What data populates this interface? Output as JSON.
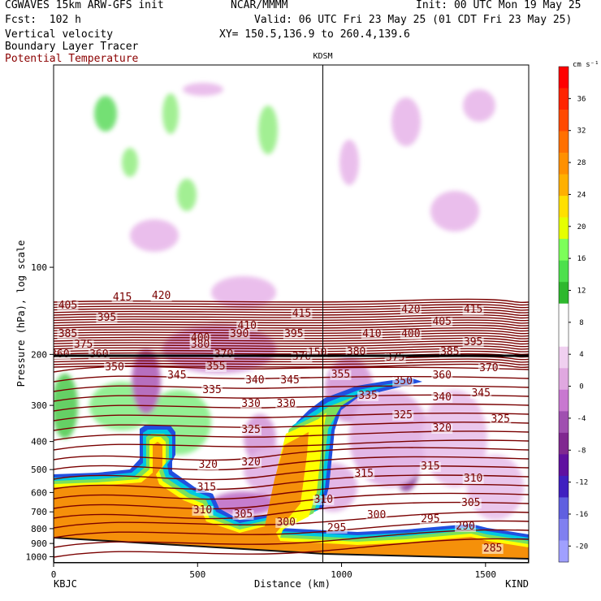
{
  "header": {
    "model": "CGWAVES 15km ARW-GFS init",
    "fcst": "Fcst:  102 h",
    "field1": "Vertical velocity",
    "field2": "Boundary Layer Tracer",
    "field3": "Potential Temperature",
    "org": "NCAR/MMMM",
    "init": "Init: 00 UTC Mon 19 May 25",
    "valid": "Valid: 06 UTC Fri 23 May 25 (01 CDT Fri 23 May 25)",
    "xy": "XY= 150.5,136.9 to 260.4,139.6"
  },
  "colors": {
    "theta": "#7a0000",
    "tracer_orange": "#f5900a",
    "tracer_yellow": "#ffff00",
    "tracer_green": "#7ce05a",
    "tracer_cyan": "#00c8e0",
    "tracer_blue": "#2050e0",
    "w_pos": "#66dd66",
    "w_neg": "#c878d0"
  },
  "chart_data": {
    "type": "heatmap",
    "title": "",
    "xlabel": "Distance (km)",
    "ylabel": "Pressure (hPa), log scale",
    "xlim": [
      0,
      1650
    ],
    "ylim": [
      1050,
      20
    ],
    "x_ticks": [
      0,
      500,
      1000,
      1500
    ],
    "y_ticks": [
      100,
      200,
      300,
      400,
      500,
      600,
      700,
      800,
      900,
      1000
    ],
    "start_station": "KBJC",
    "end_station": "KIND",
    "marker_station": "KDSM",
    "marker_x": 935,
    "colorbar": {
      "unit": "cm s⁻¹",
      "ticks": [
        36,
        32,
        28,
        24,
        20,
        16,
        12,
        8,
        4,
        0,
        -4,
        -8,
        -12,
        -16,
        -20
      ],
      "colors": [
        "#ff0000",
        "#ff2400",
        "#ff4a00",
        "#ff7000",
        "#ff9000",
        "#ffb000",
        "#ffe000",
        "#e6ff00",
        "#7cff5a",
        "#4ce04c",
        "#2eb82e",
        "#ffffff",
        "#ffffff",
        "#f0d0f0",
        "#e0a8e0",
        "#c878d0",
        "#a050b0",
        "#802890",
        "#6010a0",
        "#4020c0",
        "#6060e0",
        "#8080f0",
        "#a0a0ff"
      ]
    },
    "theta_labels": [
      {
        "x": 80,
        "p": 380,
        "v": "405"
      },
      {
        "x": 150,
        "p": 370,
        "v": "415"
      },
      {
        "x": 200,
        "p": 368,
        "v": "420"
      },
      {
        "x": 130,
        "p": 395,
        "v": "395"
      },
      {
        "x": 250,
        "p": 420,
        "v": "400"
      },
      {
        "x": 310,
        "p": 405,
        "v": "410"
      },
      {
        "x": 380,
        "p": 390,
        "v": "415"
      },
      {
        "x": 470,
        "p": 415,
        "v": "410"
      },
      {
        "x": 520,
        "p": 385,
        "v": "420"
      },
      {
        "x": 560,
        "p": 400,
        "v": "405"
      },
      {
        "x": 600,
        "p": 385,
        "v": "415"
      },
      {
        "x": 80,
        "p": 415,
        "v": "385"
      },
      {
        "x": 100,
        "p": 428,
        "v": "375"
      },
      {
        "x": 250,
        "p": 428,
        "v": "380"
      },
      {
        "x": 300,
        "p": 415,
        "v": "390"
      },
      {
        "x": 370,
        "p": 415,
        "v": "395"
      },
      {
        "x": 520,
        "p": 415,
        "v": "400"
      },
      {
        "x": 600,
        "p": 425,
        "v": "395"
      },
      {
        "x": 70,
        "p": 440,
        "v": "360"
      },
      {
        "x": 120,
        "p": 440,
        "v": "360"
      },
      {
        "x": 280,
        "p": 440,
        "v": "370"
      },
      {
        "x": 380,
        "p": 443,
        "v": "370"
      },
      {
        "x": 400,
        "p": 438,
        "v": "150"
      },
      {
        "x": 450,
        "p": 437,
        "v": "380"
      },
      {
        "x": 500,
        "p": 444,
        "v": "375"
      },
      {
        "x": 570,
        "p": 437,
        "v": "385"
      },
      {
        "x": 140,
        "p": 456,
        "v": "350"
      },
      {
        "x": 220,
        "p": 466,
        "v": "345"
      },
      {
        "x": 270,
        "p": 455,
        "v": "355"
      },
      {
        "x": 320,
        "p": 472,
        "v": "340"
      },
      {
        "x": 365,
        "p": 472,
        "v": "345"
      },
      {
        "x": 430,
        "p": 465,
        "v": "355"
      },
      {
        "x": 510,
        "p": 473,
        "v": "350"
      },
      {
        "x": 560,
        "p": 466,
        "v": "360"
      },
      {
        "x": 620,
        "p": 457,
        "v": "370"
      },
      {
        "x": 265,
        "p": 484,
        "v": "335"
      },
      {
        "x": 315,
        "p": 501,
        "v": "330"
      },
      {
        "x": 360,
        "p": 501,
        "v": "330"
      },
      {
        "x": 465,
        "p": 491,
        "v": "335"
      },
      {
        "x": 560,
        "p": 493,
        "v": "340"
      },
      {
        "x": 610,
        "p": 488,
        "v": "345"
      },
      {
        "x": 315,
        "p": 533,
        "v": "325"
      },
      {
        "x": 510,
        "p": 515,
        "v": "325"
      },
      {
        "x": 560,
        "p": 531,
        "v": "320"
      },
      {
        "x": 635,
        "p": 520,
        "v": "325"
      },
      {
        "x": 260,
        "p": 576,
        "v": "320"
      },
      {
        "x": 315,
        "p": 573,
        "v": "320"
      },
      {
        "x": 258,
        "p": 604,
        "v": "315"
      },
      {
        "x": 460,
        "p": 587,
        "v": "315"
      },
      {
        "x": 545,
        "p": 578,
        "v": "315"
      },
      {
        "x": 600,
        "p": 593,
        "v": "310"
      },
      {
        "x": 408,
        "p": 619,
        "v": "310"
      },
      {
        "x": 597,
        "p": 623,
        "v": "305"
      },
      {
        "x": 253,
        "p": 632,
        "v": "310"
      },
      {
        "x": 305,
        "p": 637,
        "v": "305"
      },
      {
        "x": 476,
        "p": 638,
        "v": "300"
      },
      {
        "x": 545,
        "p": 643,
        "v": "295"
      },
      {
        "x": 360,
        "p": 647,
        "v": "300"
      },
      {
        "x": 425,
        "p": 654,
        "v": "295"
      },
      {
        "x": 590,
        "p": 652,
        "v": "290"
      },
      {
        "x": 625,
        "p": 679,
        "v": "285"
      }
    ]
  }
}
